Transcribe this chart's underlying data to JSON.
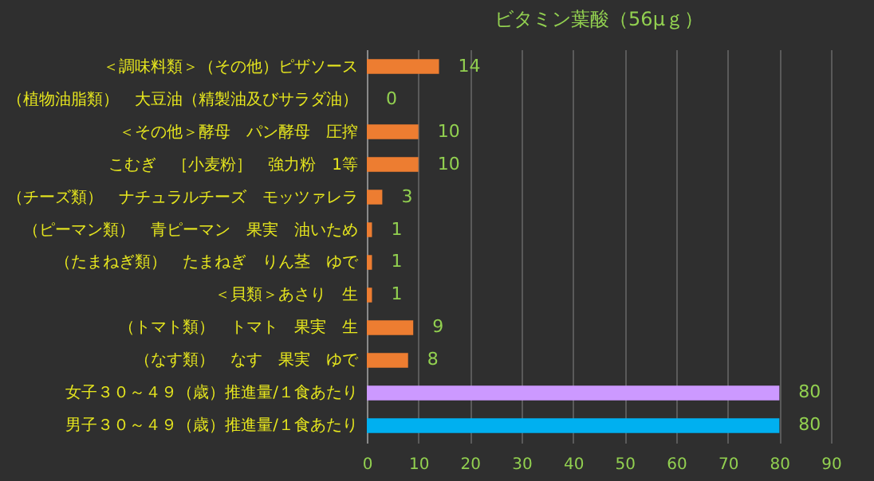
{
  "chart_data": {
    "type": "bar",
    "orientation": "horizontal",
    "title": "ビタミン葉酸（56μｇ）",
    "categories": [
      "＜調味料類＞（その他）ピザソース",
      "（植物油脂類）　大豆油（精製油及びサラダ油）",
      "＜その他＞酵母　パン酵母　圧搾",
      "こむぎ　［小麦粉］　強力粉　1等",
      "（チーズ類）　ナチュラルチーズ　モッツァレラ",
      "（ピーマン類）　青ピーマン　果実　油いため",
      "（たまねぎ類）　たまねぎ　りん茎　ゆで",
      "＜貝類＞あさり　生",
      "（トマト類）　トマト　果実　生",
      "（なす類）　なす　果実　ゆで",
      "女子３０～４９（歳）推進量/１食あたり",
      "男子３０～４９（歳）推進量/１食あたり"
    ],
    "values": [
      14,
      0,
      10,
      10,
      3,
      1,
      1,
      1,
      9,
      8,
      80,
      80
    ],
    "colors": [
      "#ed7d31",
      "#ed7d31",
      "#ed7d31",
      "#ed7d31",
      "#ed7d31",
      "#ed7d31",
      "#ed7d31",
      "#ed7d31",
      "#ed7d31",
      "#ed7d31",
      "#cc99ff",
      "#00b0f0"
    ],
    "xlim": [
      0,
      90
    ],
    "xticks": [
      0,
      10,
      20,
      30,
      40,
      50,
      60,
      70,
      80,
      90
    ],
    "grid": "x",
    "data_labels": true
  }
}
